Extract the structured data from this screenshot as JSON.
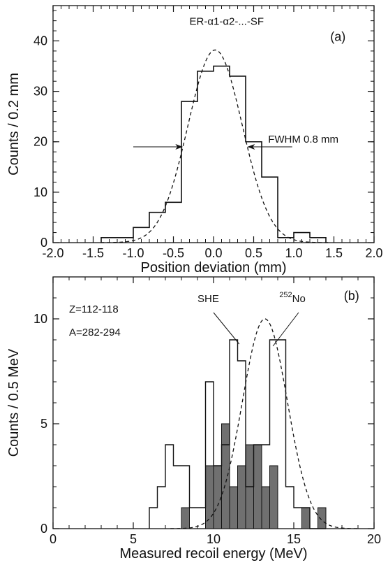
{
  "chart_data": [
    {
      "type": "histogram",
      "panel": "(a)",
      "xlabel": "Position deviation (mm)",
      "ylabel": "Counts / 0.2 mm",
      "xlim": [
        -2.0,
        2.0
      ],
      "ylim": [
        0,
        47
      ],
      "xticks": [
        "-2.0",
        "-1.5",
        "-1.0",
        "-0.5",
        "0.0",
        "0.5",
        "1.0",
        "1.5",
        "2.0"
      ],
      "yticks": [
        "0",
        "10",
        "20",
        "30",
        "40"
      ],
      "bin_width": 0.2,
      "bin_edges": [
        -1.4,
        -1.2,
        -1.0,
        -0.8,
        -0.6,
        -0.4,
        -0.2,
        0.0,
        0.2,
        0.4,
        0.6,
        0.8,
        1.0,
        1.2,
        1.4
      ],
      "counts": [
        1,
        1,
        3,
        6,
        8,
        28,
        34,
        35,
        33,
        20,
        13,
        1,
        2,
        1
      ],
      "fit_curve": {
        "style": "dashed",
        "function": "gaussian",
        "amplitude": 38.2,
        "mean": 0.02,
        "fwhm": 0.8
      },
      "label_title": "ER-α1-α2-...-SF",
      "label_text": "FWHM 0.8 mm",
      "label_arrow_positions": [
        -0.38,
        0.42
      ]
    },
    {
      "type": "histogram",
      "panel": "(b)",
      "xlabel": "Measured recoil energy (MeV)",
      "ylabel": "Counts / 0.5 MeV",
      "xlim": [
        0,
        20
      ],
      "ylim": [
        0,
        12
      ],
      "xticks": [
        "0",
        "5",
        "10",
        "15",
        "20"
      ],
      "yticks": [
        "0",
        "5",
        "10"
      ],
      "bin_width": 0.5,
      "bin_edges": [
        6.0,
        6.5,
        7.0,
        7.5,
        8.0,
        8.5,
        9.0,
        9.5,
        10.0,
        10.5,
        11.0,
        11.5,
        12.0,
        12.5,
        13.0,
        13.5,
        14.0,
        14.5,
        15.0,
        15.5,
        16.0,
        16.5,
        17.0
      ],
      "series": [
        {
          "name": "SHE",
          "fill": "none",
          "counts": [
            1,
            2,
            4,
            3,
            3,
            1,
            1,
            7,
            3,
            4,
            9,
            8,
            2,
            4,
            4,
            9,
            9,
            2,
            1,
            1,
            0,
            0
          ]
        },
        {
          "name": "252No",
          "fill": "#707070",
          "counts": [
            0,
            0,
            0,
            0,
            1,
            0,
            0,
            3,
            3,
            5,
            2,
            3,
            4,
            4,
            2,
            3,
            0,
            0,
            0,
            1,
            0,
            1
          ]
        }
      ],
      "fit_curve": {
        "style": "dashed",
        "function": "gaussian",
        "amplitude": 10.0,
        "mean": 13.2,
        "fwhm": 3.3
      },
      "label_z": "Z=112-118",
      "label_a": "A=282-294",
      "label_she": "SHE",
      "label_no_mass": "252",
      "label_no_symbol": "No",
      "pointer_she_tip": [
        11.6,
        8.8
      ],
      "pointer_no_tip": [
        13.7,
        8.7
      ]
    }
  ]
}
